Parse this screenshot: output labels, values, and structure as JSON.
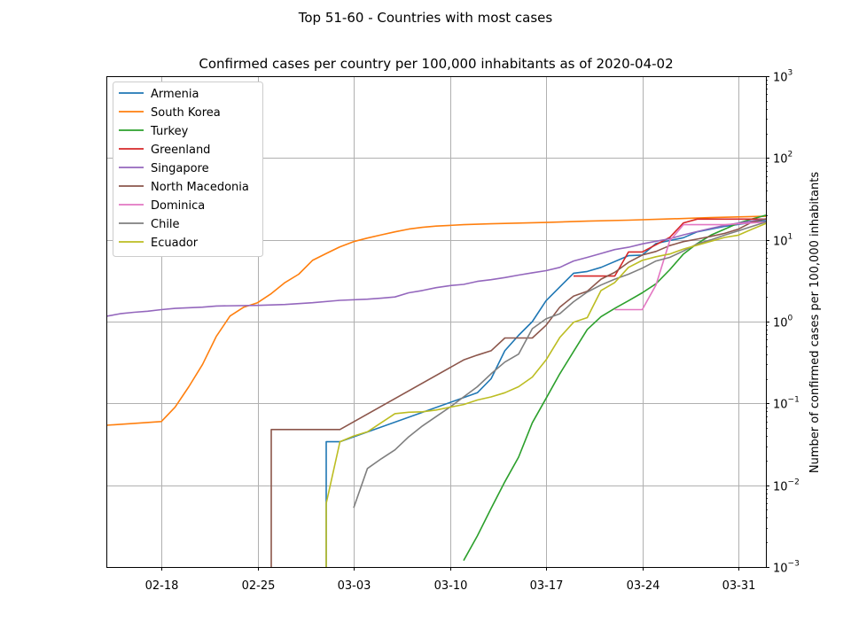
{
  "suptitle": "Top 51-60 - Countries with most cases",
  "chart_data": {
    "type": "line",
    "title": "Confirmed cases per country per 100,000 inhabitants as of 2020-04-02",
    "xlabel": "",
    "ylabel": "Number of confirmed cases per 100,000 inhabitants",
    "y_scale": "log",
    "y_axis_side": "right",
    "ylim": [
      0.001,
      1000
    ],
    "xlim": [
      "2020-02-14",
      "2020-04-02"
    ],
    "y_ticks": [
      {
        "value": 0.001,
        "base": "10",
        "exp": "−3"
      },
      {
        "value": 0.01,
        "base": "10",
        "exp": "−2"
      },
      {
        "value": 0.1,
        "base": "10",
        "exp": "−1"
      },
      {
        "value": 1,
        "base": "10",
        "exp": "0"
      },
      {
        "value": 10,
        "base": "10",
        "exp": "1"
      },
      {
        "value": 100,
        "base": "10",
        "exp": "2"
      },
      {
        "value": 1000,
        "base": "10",
        "exp": "3"
      }
    ],
    "x_ticks": [
      {
        "date": "2020-02-18",
        "label": "02-18"
      },
      {
        "date": "2020-02-25",
        "label": "02-25"
      },
      {
        "date": "2020-03-03",
        "label": "03-03"
      },
      {
        "date": "2020-03-10",
        "label": "03-10"
      },
      {
        "date": "2020-03-17",
        "label": "03-17"
      },
      {
        "date": "2020-03-24",
        "label": "03-24"
      },
      {
        "date": "2020-03-31",
        "label": "03-31"
      }
    ],
    "grid": true,
    "legend_position": "top-left",
    "series": [
      {
        "name": "Armenia",
        "color": "#1f77b4",
        "points": [
          [
            "2020-03-01",
            0.001
          ],
          [
            "2020-03-01",
            0.034
          ],
          [
            "2020-03-02",
            0.034
          ],
          [
            "2020-03-12",
            0.135
          ],
          [
            "2020-03-13",
            0.2
          ],
          [
            "2020-03-14",
            0.44
          ],
          [
            "2020-03-15",
            0.68
          ],
          [
            "2020-03-16",
            1.0
          ],
          [
            "2020-03-17",
            1.8
          ],
          [
            "2020-03-19",
            3.9
          ],
          [
            "2020-03-20",
            4.1
          ],
          [
            "2020-03-21",
            4.6
          ],
          [
            "2020-03-23",
            6.4
          ],
          [
            "2020-03-24",
            6.5
          ],
          [
            "2020-03-25",
            9.0
          ],
          [
            "2020-03-26",
            9.8
          ],
          [
            "2020-03-27",
            10.6
          ],
          [
            "2020-03-28",
            12.5
          ],
          [
            "2020-03-29",
            13.5
          ],
          [
            "2020-03-30",
            14.6
          ],
          [
            "2020-04-01",
            16.3
          ],
          [
            "2020-04-02",
            17.1
          ]
        ]
      },
      {
        "name": "South Korea",
        "color": "#ff7f0e",
        "points": [
          [
            "2020-02-14",
            0.054
          ],
          [
            "2020-02-18",
            0.06
          ],
          [
            "2020-02-19",
            0.09
          ],
          [
            "2020-02-20",
            0.16
          ],
          [
            "2020-02-21",
            0.3
          ],
          [
            "2020-02-22",
            0.66
          ],
          [
            "2020-02-23",
            1.17
          ],
          [
            "2020-02-24",
            1.5
          ],
          [
            "2020-02-25",
            1.7
          ],
          [
            "2020-02-26",
            2.2
          ],
          [
            "2020-02-27",
            3.0
          ],
          [
            "2020-02-28",
            3.8
          ],
          [
            "2020-02-29",
            5.6
          ],
          [
            "2020-03-01",
            6.8
          ],
          [
            "2020-03-02",
            8.2
          ],
          [
            "2020-03-03",
            9.5
          ],
          [
            "2020-03-04",
            10.5
          ],
          [
            "2020-03-05",
            11.5
          ],
          [
            "2020-03-06",
            12.5
          ],
          [
            "2020-03-07",
            13.5
          ],
          [
            "2020-03-08",
            14.2
          ],
          [
            "2020-03-09",
            14.7
          ],
          [
            "2020-03-10",
            15.0
          ],
          [
            "2020-03-11",
            15.3
          ],
          [
            "2020-03-13",
            15.7
          ],
          [
            "2020-03-15",
            16.0
          ],
          [
            "2020-03-17",
            16.3
          ],
          [
            "2020-03-20",
            16.9
          ],
          [
            "2020-03-23",
            17.4
          ],
          [
            "2020-03-26",
            18.0
          ],
          [
            "2020-03-29",
            18.7
          ],
          [
            "2020-04-02",
            19.4
          ]
        ]
      },
      {
        "name": "Turkey",
        "color": "#2ca02c",
        "points": [
          [
            "2020-03-11",
            0.0012
          ],
          [
            "2020-03-12",
            0.0024
          ],
          [
            "2020-03-13",
            0.0052
          ],
          [
            "2020-03-14",
            0.011
          ],
          [
            "2020-03-15",
            0.022
          ],
          [
            "2020-03-16",
            0.058
          ],
          [
            "2020-03-17",
            0.115
          ],
          [
            "2020-03-18",
            0.23
          ],
          [
            "2020-03-19",
            0.43
          ],
          [
            "2020-03-20",
            0.8
          ],
          [
            "2020-03-21",
            1.15
          ],
          [
            "2020-03-22",
            1.45
          ],
          [
            "2020-03-23",
            1.8
          ],
          [
            "2020-03-24",
            2.25
          ],
          [
            "2020-03-25",
            2.9
          ],
          [
            "2020-03-26",
            4.3
          ],
          [
            "2020-03-27",
            6.7
          ],
          [
            "2020-03-28",
            9.0
          ],
          [
            "2020-03-29",
            11.4
          ],
          [
            "2020-03-30",
            13.5
          ],
          [
            "2020-03-31",
            16.0
          ],
          [
            "2020-04-01",
            18.0
          ],
          [
            "2020-04-02",
            20.0
          ]
        ]
      },
      {
        "name": "Greenland",
        "color": "#d62728",
        "points": [
          [
            "2020-03-19",
            3.6
          ],
          [
            "2020-03-22",
            3.6
          ],
          [
            "2020-03-23",
            7.1
          ],
          [
            "2020-03-24",
            7.1
          ],
          [
            "2020-03-26",
            10.7
          ],
          [
            "2020-03-27",
            16.1
          ],
          [
            "2020-03-28",
            17.9
          ],
          [
            "2020-04-02",
            17.9
          ]
        ]
      },
      {
        "name": "Singapore",
        "color": "#9467bd",
        "points": [
          [
            "2020-02-14",
            1.16
          ],
          [
            "2020-02-15",
            1.25
          ],
          [
            "2020-02-16",
            1.3
          ],
          [
            "2020-02-17",
            1.34
          ],
          [
            "2020-02-18",
            1.4
          ],
          [
            "2020-02-19",
            1.45
          ],
          [
            "2020-02-21",
            1.5
          ],
          [
            "2020-02-22",
            1.55
          ],
          [
            "2020-02-25",
            1.58
          ],
          [
            "2020-02-27",
            1.62
          ],
          [
            "2020-02-28",
            1.66
          ],
          [
            "2020-02-29",
            1.7
          ],
          [
            "2020-03-02",
            1.82
          ],
          [
            "2020-03-04",
            1.88
          ],
          [
            "2020-03-05",
            1.93
          ],
          [
            "2020-03-06",
            2.0
          ],
          [
            "2020-03-07",
            2.25
          ],
          [
            "2020-03-08",
            2.4
          ],
          [
            "2020-03-09",
            2.6
          ],
          [
            "2020-03-10",
            2.75
          ],
          [
            "2020-03-11",
            2.85
          ],
          [
            "2020-03-12",
            3.1
          ],
          [
            "2020-03-13",
            3.25
          ],
          [
            "2020-03-14",
            3.45
          ],
          [
            "2020-03-15",
            3.7
          ],
          [
            "2020-03-16",
            3.95
          ],
          [
            "2020-03-17",
            4.2
          ],
          [
            "2020-03-18",
            4.6
          ],
          [
            "2020-03-19",
            5.5
          ],
          [
            "2020-03-20",
            6.1
          ],
          [
            "2020-03-21",
            6.8
          ],
          [
            "2020-03-22",
            7.6
          ],
          [
            "2020-03-23",
            8.1
          ],
          [
            "2020-03-24",
            8.9
          ],
          [
            "2020-03-25",
            9.6
          ],
          [
            "2020-03-26",
            10.3
          ],
          [
            "2020-03-27",
            11.5
          ],
          [
            "2020-03-28",
            12.6
          ],
          [
            "2020-03-29",
            13.8
          ],
          [
            "2020-03-30",
            15.0
          ],
          [
            "2020-03-31",
            16.0
          ],
          [
            "2020-04-01",
            17.0
          ],
          [
            "2020-04-02",
            18.0
          ]
        ]
      },
      {
        "name": "North Macedonia",
        "color": "#8c564b",
        "points": [
          [
            "2020-02-26",
            0.001
          ],
          [
            "2020-02-26",
            0.048
          ],
          [
            "2020-03-02",
            0.048
          ],
          [
            "2020-03-11",
            0.34
          ],
          [
            "2020-03-12",
            0.39
          ],
          [
            "2020-03-13",
            0.44
          ],
          [
            "2020-03-14",
            0.63
          ],
          [
            "2020-03-16",
            0.63
          ],
          [
            "2020-03-17",
            0.9
          ],
          [
            "2020-03-18",
            1.5
          ],
          [
            "2020-03-19",
            2.05
          ],
          [
            "2020-03-20",
            2.35
          ],
          [
            "2020-03-21",
            3.3
          ],
          [
            "2020-03-22",
            4.0
          ],
          [
            "2020-03-23",
            5.3
          ],
          [
            "2020-03-24",
            6.5
          ],
          [
            "2020-03-25",
            7.2
          ],
          [
            "2020-03-26",
            8.5
          ],
          [
            "2020-03-27",
            9.5
          ],
          [
            "2020-03-28",
            10.2
          ],
          [
            "2020-03-29",
            11.0
          ],
          [
            "2020-03-30",
            12.0
          ],
          [
            "2020-03-31",
            13.5
          ],
          [
            "2020-04-01",
            16.5
          ],
          [
            "2020-04-02",
            18.0
          ]
        ]
      },
      {
        "name": "Dominica",
        "color": "#e377c2",
        "points": [
          [
            "2020-03-22",
            1.4
          ],
          [
            "2020-03-23",
            1.4
          ],
          [
            "2020-03-24",
            1.4
          ],
          [
            "2020-03-25",
            2.8
          ],
          [
            "2020-03-26",
            9.7
          ],
          [
            "2020-03-27",
            15.3
          ],
          [
            "2020-03-28",
            15.3
          ],
          [
            "2020-03-29",
            15.3
          ],
          [
            "2020-03-30",
            15.3
          ],
          [
            "2020-04-02",
            16.5
          ]
        ]
      },
      {
        "name": "Chile",
        "color": "#7f7f7f",
        "points": [
          [
            "2020-03-03",
            0.0053
          ],
          [
            "2020-03-04",
            0.016
          ],
          [
            "2020-03-05",
            0.021
          ],
          [
            "2020-03-06",
            0.027
          ],
          [
            "2020-03-07",
            0.039
          ],
          [
            "2020-03-08",
            0.053
          ],
          [
            "2020-03-09",
            0.069
          ],
          [
            "2020-03-10",
            0.09
          ],
          [
            "2020-03-11",
            0.12
          ],
          [
            "2020-03-12",
            0.16
          ],
          [
            "2020-03-13",
            0.23
          ],
          [
            "2020-03-14",
            0.32
          ],
          [
            "2020-03-15",
            0.4
          ],
          [
            "2020-03-16",
            0.82
          ],
          [
            "2020-03-17",
            1.08
          ],
          [
            "2020-03-18",
            1.25
          ],
          [
            "2020-03-19",
            1.75
          ],
          [
            "2020-03-20",
            2.3
          ],
          [
            "2020-03-21",
            2.8
          ],
          [
            "2020-03-22",
            3.3
          ],
          [
            "2020-03-23",
            3.8
          ],
          [
            "2020-03-24",
            4.5
          ],
          [
            "2020-03-25",
            5.5
          ],
          [
            "2020-03-26",
            6.1
          ],
          [
            "2020-03-27",
            7.3
          ],
          [
            "2020-03-28",
            8.9
          ],
          [
            "2020-03-29",
            10.0
          ],
          [
            "2020-03-30",
            11.4
          ],
          [
            "2020-03-31",
            12.9
          ],
          [
            "2020-04-01",
            14.6
          ],
          [
            "2020-04-02",
            16.5
          ]
        ]
      },
      {
        "name": "Ecuador",
        "color": "#bcbd22",
        "points": [
          [
            "2020-03-01",
            0.001
          ],
          [
            "2020-03-01",
            0.006
          ],
          [
            "2020-03-02",
            0.034
          ],
          [
            "2020-03-03",
            0.04
          ],
          [
            "2020-03-04",
            0.045
          ],
          [
            "2020-03-05",
            0.058
          ],
          [
            "2020-03-06",
            0.075
          ],
          [
            "2020-03-07",
            0.078
          ],
          [
            "2020-03-08",
            0.079
          ],
          [
            "2020-03-09",
            0.083
          ],
          [
            "2020-03-10",
            0.09
          ],
          [
            "2020-03-11",
            0.097
          ],
          [
            "2020-03-12",
            0.11
          ],
          [
            "2020-03-13",
            0.12
          ],
          [
            "2020-03-14",
            0.135
          ],
          [
            "2020-03-15",
            0.16
          ],
          [
            "2020-03-16",
            0.21
          ],
          [
            "2020-03-17",
            0.34
          ],
          [
            "2020-03-18",
            0.64
          ],
          [
            "2020-03-19",
            0.98
          ],
          [
            "2020-03-20",
            1.12
          ],
          [
            "2020-03-21",
            2.4
          ],
          [
            "2020-03-22",
            3.0
          ],
          [
            "2020-03-23",
            4.6
          ],
          [
            "2020-03-24",
            5.6
          ],
          [
            "2020-03-25",
            6.2
          ],
          [
            "2020-03-26",
            6.7
          ],
          [
            "2020-03-27",
            7.7
          ],
          [
            "2020-03-28",
            8.6
          ],
          [
            "2020-03-29",
            9.6
          ],
          [
            "2020-03-30",
            10.7
          ],
          [
            "2020-03-31",
            11.4
          ],
          [
            "2020-04-01",
            13.5
          ],
          [
            "2020-04-02",
            15.8
          ]
        ]
      }
    ]
  }
}
